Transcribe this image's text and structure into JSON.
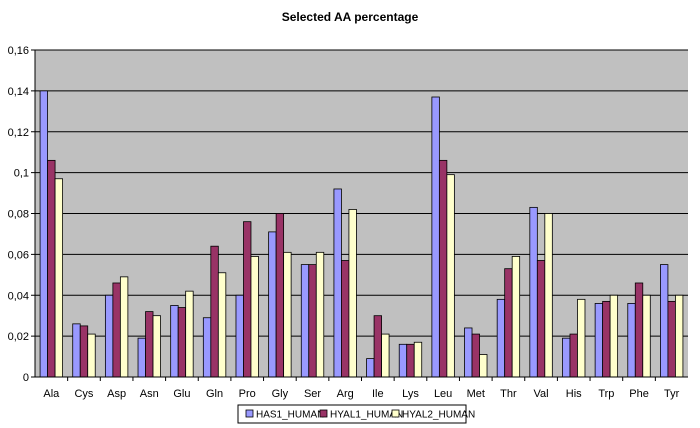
{
  "chart_data": {
    "type": "bar",
    "title": "Selected AA percentage",
    "xlabel": "",
    "ylabel": "",
    "ylim": [
      0,
      0.16
    ],
    "yticks": [
      "0",
      "0,02",
      "0,04",
      "0,06",
      "0,08",
      "0,1",
      "0,12",
      "0,14",
      "0,16"
    ],
    "categories": [
      "Ala",
      "Cys",
      "Asp",
      "Asn",
      "Glu",
      "Gln",
      "Pro",
      "Gly",
      "Ser",
      "Arg",
      "Ile",
      "Lys",
      "Leu",
      "Met",
      "Thr",
      "Val",
      "His",
      "Trp",
      "Phe",
      "Tyr"
    ],
    "series": [
      {
        "name": "HAS1_HUMAN",
        "color": "#9999FF",
        "values": [
          0.14,
          0.026,
          0.04,
          0.019,
          0.035,
          0.029,
          0.04,
          0.071,
          0.055,
          0.092,
          0.009,
          0.016,
          0.137,
          0.024,
          0.038,
          0.083,
          0.019,
          0.036,
          0.036,
          0.055
        ]
      },
      {
        "name": "HYAL1_HUMAN",
        "color": "#993366",
        "values": [
          0.106,
          0.025,
          0.046,
          0.032,
          0.034,
          0.064,
          0.076,
          0.08,
          0.055,
          0.057,
          0.03,
          0.016,
          0.106,
          0.021,
          0.053,
          0.057,
          0.021,
          0.037,
          0.046,
          0.037
        ]
      },
      {
        "name": "HYAL2_HUMAN",
        "color": "#FFFFCC",
        "values": [
          0.097,
          0.021,
          0.049,
          0.03,
          0.042,
          0.051,
          0.059,
          0.061,
          0.061,
          0.082,
          0.021,
          0.017,
          0.099,
          0.011,
          0.059,
          0.08,
          0.038,
          0.04,
          0.04,
          0.04
        ]
      }
    ],
    "grid": "horizontal",
    "legend": "bottom",
    "plot_background": "#C0C0C0",
    "gridline_color": "#000000"
  }
}
